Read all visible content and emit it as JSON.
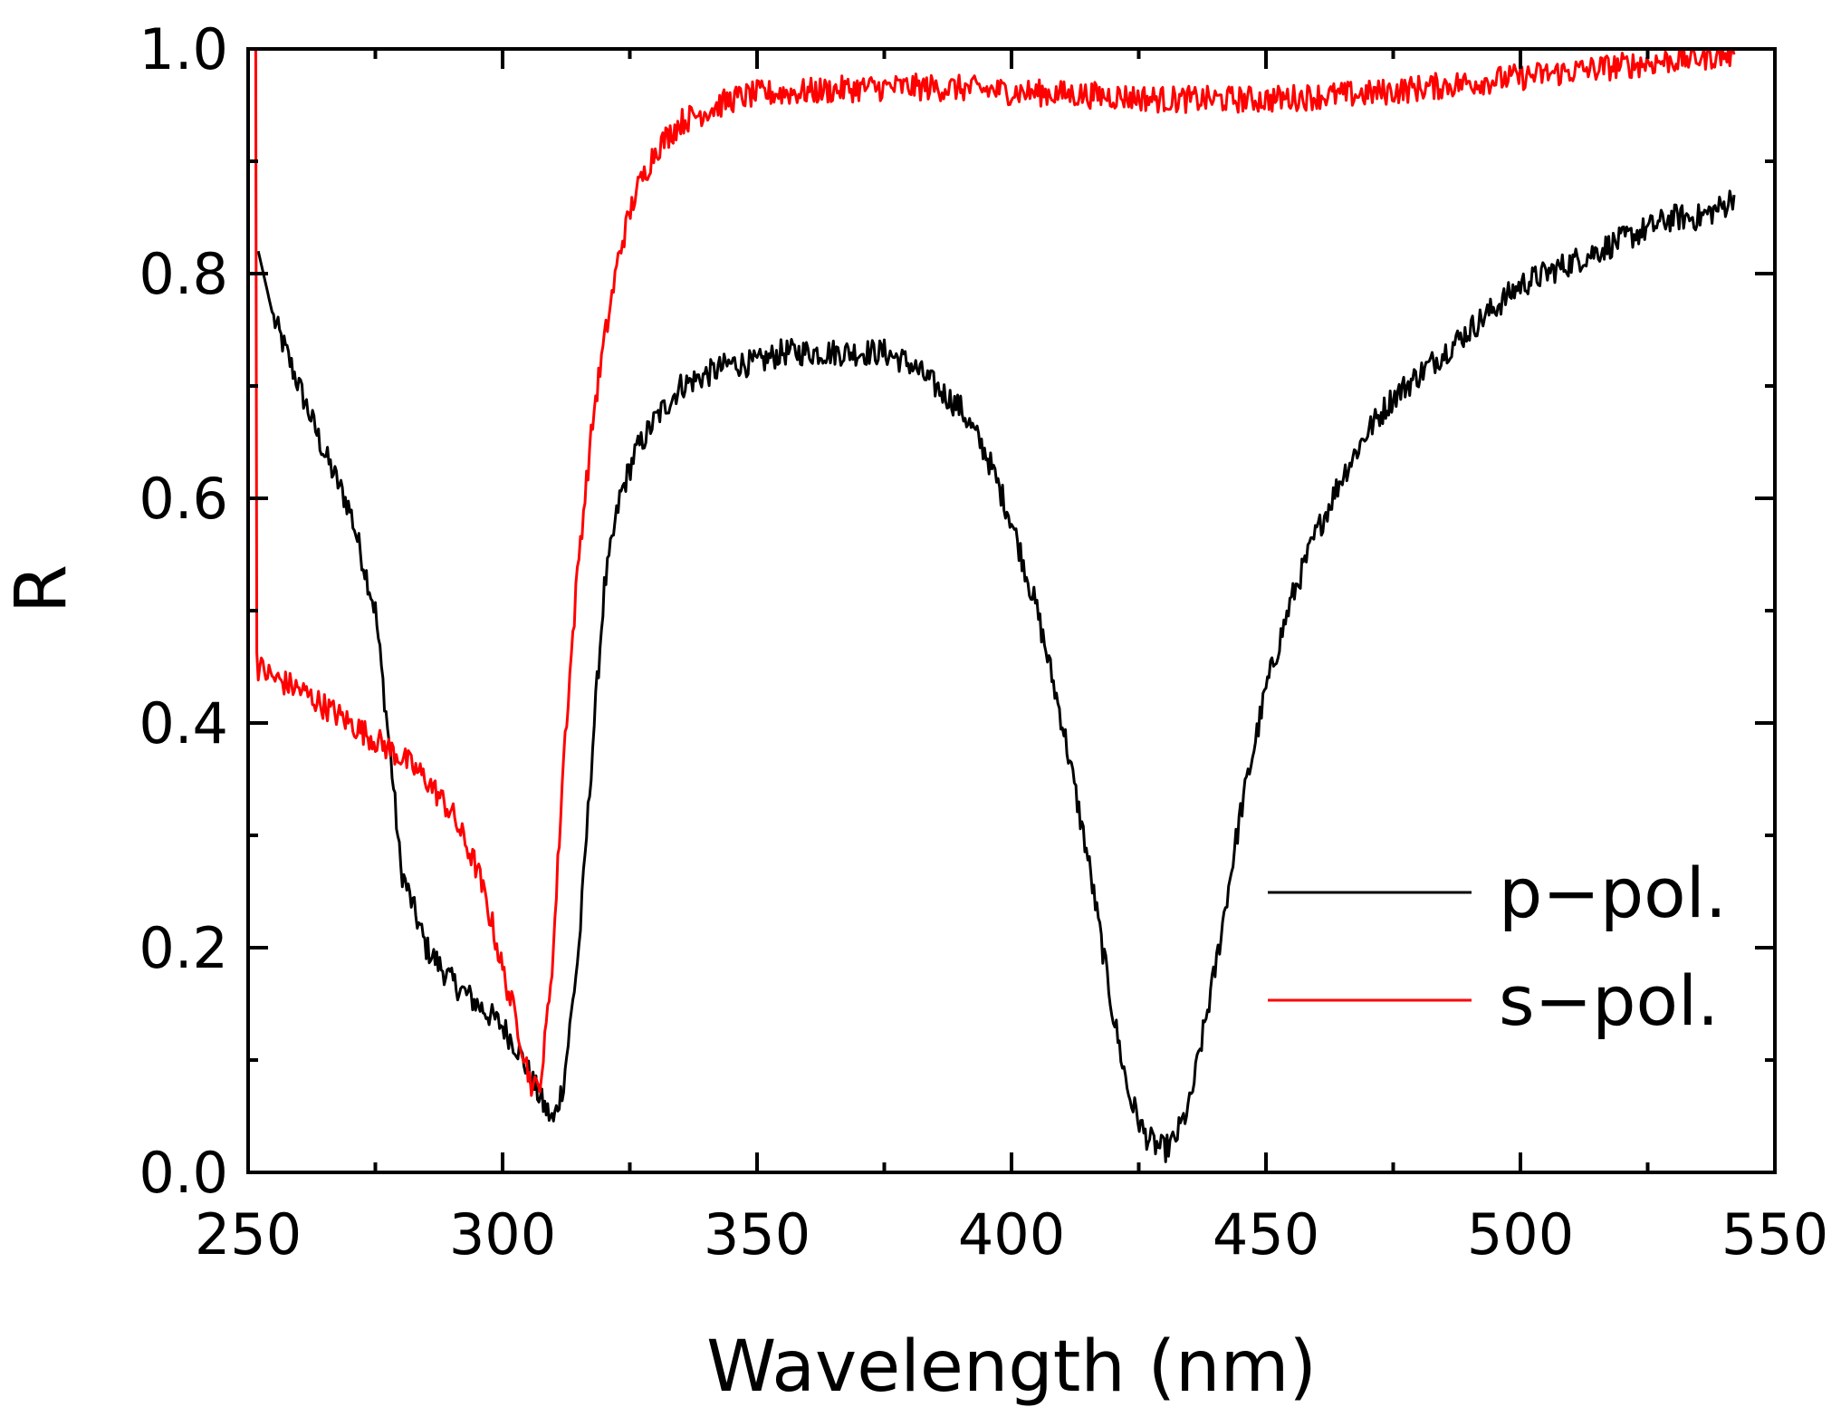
{
  "chart_data": {
    "type": "line",
    "title": "",
    "xlabel": "Wavelength (nm)",
    "ylabel": "R",
    "xlim": [
      250,
      550
    ],
    "ylim": [
      0.0,
      1.0
    ],
    "x_ticks": [
      250,
      300,
      350,
      400,
      450,
      500,
      550
    ],
    "x_tick_labels": [
      "250",
      "300",
      "350",
      "400",
      "450",
      "500",
      "550"
    ],
    "y_ticks": [
      0.0,
      0.2,
      0.4,
      0.6,
      0.8,
      1.0
    ],
    "y_tick_labels": [
      "0.0",
      "0.2",
      "0.4",
      "0.6",
      "0.8",
      "1.0"
    ],
    "grid": false,
    "legend_position": "bottom-right",
    "series": [
      {
        "name": "p−pol.",
        "color": "#000000",
        "noise": 0.012,
        "x": [
          252,
          255,
          260,
          265,
          270,
          275,
          278,
          280,
          285,
          290,
          295,
          300,
          303,
          306,
          308,
          310,
          312,
          315,
          318,
          320,
          323,
          326,
          330,
          335,
          340,
          345,
          350,
          355,
          360,
          365,
          370,
          375,
          380,
          385,
          390,
          395,
          400,
          405,
          410,
          415,
          420,
          423,
          426,
          428,
          430,
          432,
          435,
          440,
          445,
          450,
          455,
          460,
          465,
          470,
          475,
          480,
          485,
          490,
          495,
          500,
          505,
          510,
          515,
          520,
          525,
          530,
          535,
          540,
          542
        ],
        "y": [
          0.82,
          0.76,
          0.7,
          0.64,
          0.59,
          0.5,
          0.37,
          0.27,
          0.2,
          0.17,
          0.15,
          0.13,
          0.11,
          0.08,
          0.06,
          0.045,
          0.08,
          0.2,
          0.4,
          0.52,
          0.6,
          0.64,
          0.67,
          0.7,
          0.71,
          0.72,
          0.72,
          0.73,
          0.73,
          0.73,
          0.73,
          0.73,
          0.72,
          0.7,
          0.68,
          0.64,
          0.58,
          0.5,
          0.4,
          0.28,
          0.14,
          0.07,
          0.035,
          0.025,
          0.02,
          0.028,
          0.06,
          0.18,
          0.32,
          0.43,
          0.51,
          0.57,
          0.62,
          0.66,
          0.69,
          0.71,
          0.73,
          0.75,
          0.77,
          0.79,
          0.8,
          0.81,
          0.82,
          0.83,
          0.84,
          0.85,
          0.85,
          0.86,
          0.87
        ]
      },
      {
        "name": "s−pol.",
        "color": "#ff0000",
        "noise": 0.012,
        "x": [
          251.5,
          251.7,
          252,
          255,
          260,
          265,
          270,
          275,
          280,
          285,
          290,
          295,
          298,
          300,
          303,
          305,
          306,
          307,
          308,
          310,
          312,
          315,
          318,
          320,
          323,
          326,
          330,
          335,
          340,
          345,
          350,
          360,
          370,
          380,
          390,
          400,
          410,
          420,
          430,
          440,
          450,
          460,
          470,
          480,
          490,
          500,
          510,
          520,
          530,
          540,
          542
        ],
        "y": [
          1.0,
          0.46,
          0.45,
          0.44,
          0.43,
          0.415,
          0.4,
          0.385,
          0.37,
          0.35,
          0.32,
          0.27,
          0.22,
          0.18,
          0.13,
          0.09,
          0.075,
          0.075,
          0.1,
          0.2,
          0.37,
          0.55,
          0.68,
          0.74,
          0.82,
          0.87,
          0.91,
          0.935,
          0.945,
          0.955,
          0.96,
          0.962,
          0.965,
          0.966,
          0.965,
          0.962,
          0.96,
          0.958,
          0.955,
          0.955,
          0.955,
          0.958,
          0.96,
          0.965,
          0.97,
          0.975,
          0.98,
          0.985,
          0.99,
          0.995,
          0.995
        ]
      }
    ]
  }
}
